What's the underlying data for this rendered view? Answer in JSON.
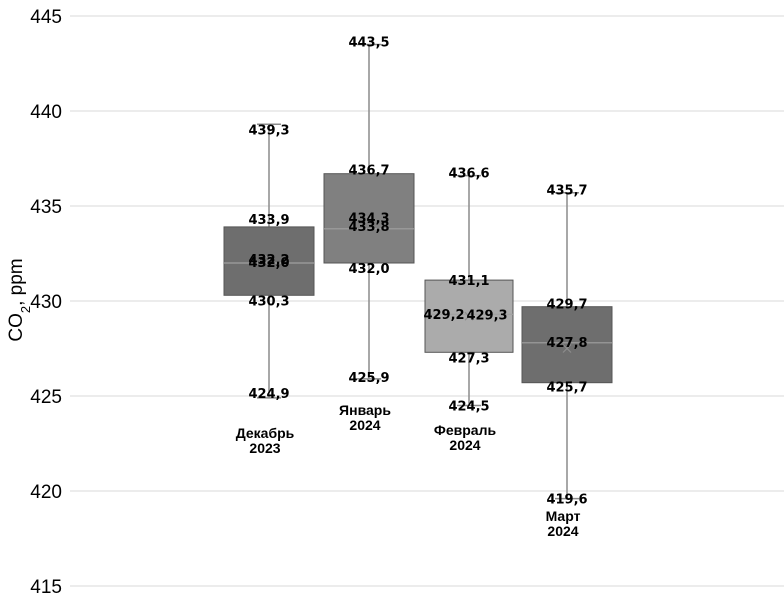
{
  "chart_data": {
    "type": "box",
    "ylabel": "CO2, ppm",
    "ylabel_main": "CO",
    "ylabel_sub": "2",
    "ylabel_unit": ", ppm",
    "ylim": [
      415,
      445
    ],
    "yticks": [
      {
        "value": 415,
        "label": "415"
      },
      {
        "value": 420,
        "label": "420"
      },
      {
        "value": 425,
        "label": "425"
      },
      {
        "value": 430,
        "label": "430"
      },
      {
        "value": 435,
        "label": "435"
      },
      {
        "value": 440,
        "label": "440"
      },
      {
        "value": 445,
        "label": "445"
      }
    ],
    "grid": true,
    "boxes": [
      {
        "category_lines": [
          "Декабрь",
          "2023"
        ],
        "min": 424.9,
        "q1": 430.3,
        "median": 432.0,
        "mean": 432.2,
        "q3": 433.9,
        "max": 439.3,
        "labels": {
          "min": "424,9",
          "q1": "430,3",
          "median": "432,0",
          "mean": "432,2",
          "q3": "433,9",
          "max": "439,3"
        },
        "color": "#6e6e6e"
      },
      {
        "category_lines": [
          "Январь",
          "2024"
        ],
        "min": 425.9,
        "q1": 432.0,
        "median": 433.8,
        "mean": 434.3,
        "q3": 436.7,
        "max": 443.5,
        "labels": {
          "min": "425,9",
          "q1": "432,0",
          "median": "433,8",
          "mean": "434,3",
          "q3": "436,7",
          "max": "443,5"
        },
        "color": "#808080"
      },
      {
        "category_lines": [
          "Февраль",
          "2024"
        ],
        "min": 424.5,
        "q1": 427.3,
        "median": 429.3,
        "mean": 429.2,
        "q3": 431.1,
        "max": 436.6,
        "labels": {
          "min": "424,5",
          "q1": "427,3",
          "median": "429,3",
          "mean": "429,2",
          "q3": "431,1",
          "max": "436,6"
        },
        "color": "#ababab"
      },
      {
        "category_lines": [
          "Март",
          "2024"
        ],
        "min": 419.6,
        "q1": 425.7,
        "median": 427.8,
        "mean": 427.5,
        "q3": 429.7,
        "max": 435.7,
        "labels": {
          "min": "419,6",
          "q1": "425,7",
          "median": "427,8",
          "q3": "429,7",
          "max": "435,7"
        },
        "color": "#6e6e6e"
      }
    ]
  }
}
